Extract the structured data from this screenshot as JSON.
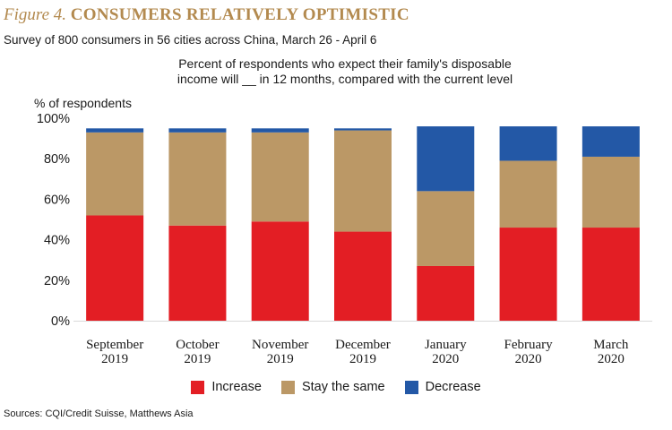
{
  "figure": {
    "label": "Figure 4.",
    "title": "CONSUMERS RELATIVELY OPTIMISTIC",
    "subtitle": "Survey of 800 consumers in 56 cities across China, March 26 - April 6",
    "caption_line1": "Percent of respondents who expect their family's disposable",
    "caption_line2": "income will __ in 12 months, compared with the current level",
    "source": "Sources: CQI/Credit Suisse, Matthews Asia"
  },
  "colors": {
    "title": "#b38a4f",
    "increase": "#e31e24",
    "stay": "#bb9866",
    "decrease": "#2358a6"
  },
  "chart_data": {
    "type": "bar",
    "stacked": true,
    "ylabel": "% of respondents",
    "ylim": [
      0,
      100
    ],
    "yticks": [
      "0%",
      "20%",
      "40%",
      "60%",
      "80%",
      "100%"
    ],
    "grid": false,
    "legend_position": "bottom",
    "categories": [
      [
        "September",
        "2019"
      ],
      [
        "October",
        "2019"
      ],
      [
        "November",
        "2019"
      ],
      [
        "December",
        "2019"
      ],
      [
        "January",
        "2020"
      ],
      [
        "February",
        "2020"
      ],
      [
        "March",
        "2020"
      ]
    ],
    "series": [
      {
        "name": "Increase",
        "color": "#e31e24",
        "values": [
          52,
          47,
          49,
          44,
          27,
          46,
          46
        ]
      },
      {
        "name": "Stay the same",
        "color": "#bb9866",
        "values": [
          41,
          46,
          44,
          50,
          37,
          33,
          35
        ]
      },
      {
        "name": "Decrease",
        "color": "#2358a6",
        "values": [
          2,
          2,
          2,
          1,
          32,
          17,
          15
        ]
      }
    ]
  }
}
